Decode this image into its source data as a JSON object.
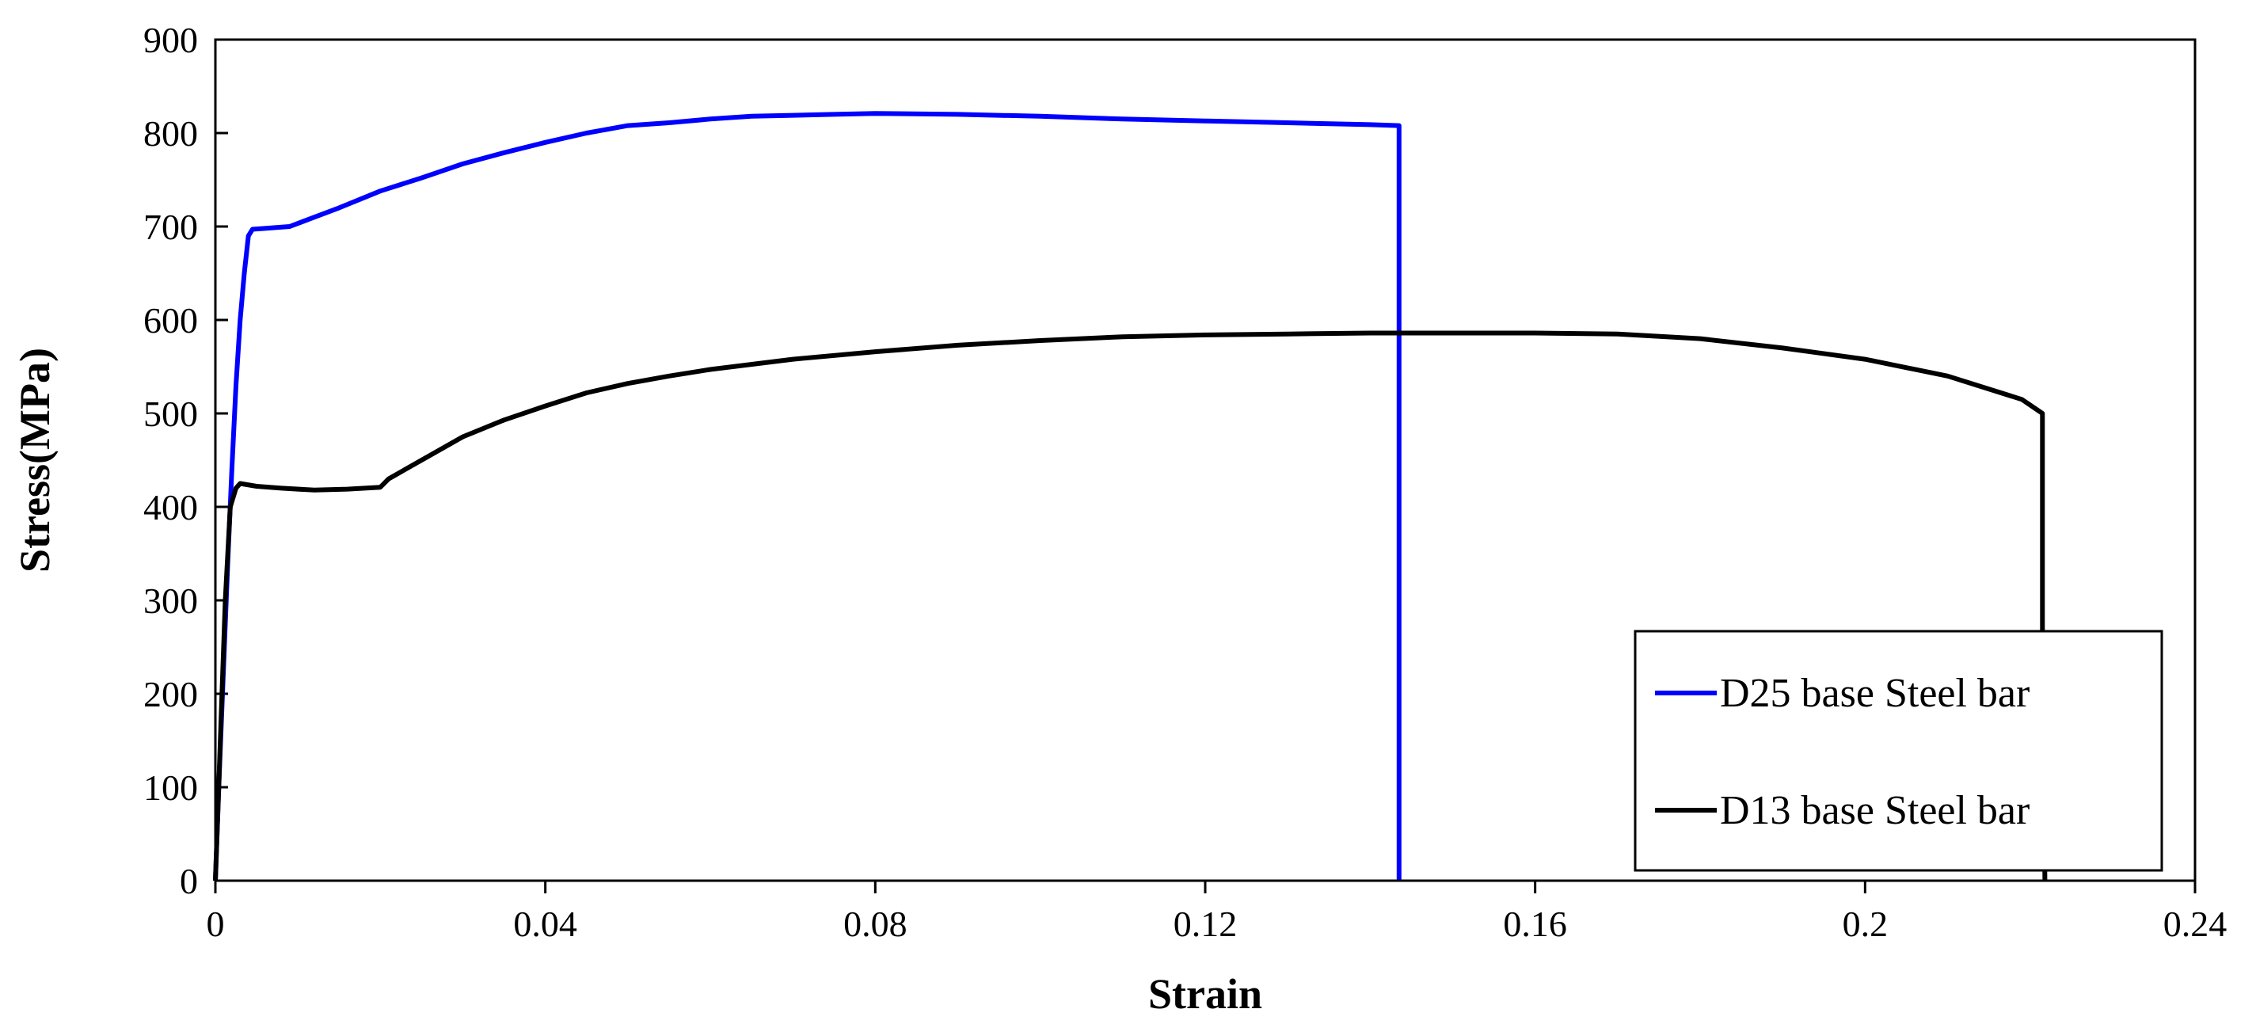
{
  "chart_data": {
    "type": "line",
    "title": "",
    "xlabel": "Strain",
    "ylabel": "Stress(MPa)",
    "xlim": [
      0,
      0.24
    ],
    "ylim": [
      0,
      900
    ],
    "xticks": [
      "0",
      "0.04",
      "0.08",
      "0.12",
      "0.16",
      "0.2",
      "0.24"
    ],
    "yticks": [
      "0",
      "100",
      "200",
      "300",
      "400",
      "500",
      "600",
      "700",
      "800",
      "900"
    ],
    "grid": false,
    "legend_position": "bottom-right",
    "series": [
      {
        "name": "D25 base Steel bar",
        "color": "#0000ff",
        "points": [
          [
            0,
            0
          ],
          [
            0.0005,
            120
          ],
          [
            0.001,
            230
          ],
          [
            0.0015,
            340
          ],
          [
            0.002,
            440
          ],
          [
            0.0025,
            530
          ],
          [
            0.003,
            600
          ],
          [
            0.0035,
            650
          ],
          [
            0.004,
            690
          ],
          [
            0.0045,
            697
          ],
          [
            0.006,
            698
          ],
          [
            0.009,
            700
          ],
          [
            0.012,
            710
          ],
          [
            0.015,
            720
          ],
          [
            0.02,
            738
          ],
          [
            0.025,
            752
          ],
          [
            0.03,
            767
          ],
          [
            0.035,
            779
          ],
          [
            0.04,
            790
          ],
          [
            0.045,
            800
          ],
          [
            0.05,
            808
          ],
          [
            0.055,
            811
          ],
          [
            0.06,
            815
          ],
          [
            0.065,
            818
          ],
          [
            0.07,
            819
          ],
          [
            0.075,
            820
          ],
          [
            0.08,
            821
          ],
          [
            0.09,
            820
          ],
          [
            0.1,
            818
          ],
          [
            0.11,
            815
          ],
          [
            0.12,
            813
          ],
          [
            0.13,
            811
          ],
          [
            0.14,
            809
          ],
          [
            0.1435,
            808
          ],
          [
            0.1435,
            0
          ]
        ]
      },
      {
        "name": "D13 base Steel bar",
        "color": "#000000",
        "points": [
          [
            0,
            0
          ],
          [
            0.0004,
            100
          ],
          [
            0.0008,
            200
          ],
          [
            0.0012,
            300
          ],
          [
            0.0018,
            400
          ],
          [
            0.0025,
            420
          ],
          [
            0.003,
            425
          ],
          [
            0.005,
            422
          ],
          [
            0.008,
            420
          ],
          [
            0.012,
            418
          ],
          [
            0.016,
            419
          ],
          [
            0.02,
            421
          ],
          [
            0.021,
            430
          ],
          [
            0.025,
            450
          ],
          [
            0.03,
            475
          ],
          [
            0.035,
            493
          ],
          [
            0.04,
            508
          ],
          [
            0.045,
            522
          ],
          [
            0.05,
            532
          ],
          [
            0.055,
            540
          ],
          [
            0.06,
            547
          ],
          [
            0.07,
            558
          ],
          [
            0.08,
            566
          ],
          [
            0.09,
            573
          ],
          [
            0.1,
            578
          ],
          [
            0.11,
            582
          ],
          [
            0.12,
            584
          ],
          [
            0.13,
            585
          ],
          [
            0.14,
            586
          ],
          [
            0.15,
            586
          ],
          [
            0.16,
            586
          ],
          [
            0.17,
            585
          ],
          [
            0.18,
            580
          ],
          [
            0.19,
            570
          ],
          [
            0.2,
            558
          ],
          [
            0.21,
            540
          ],
          [
            0.219,
            515
          ],
          [
            0.2215,
            500
          ],
          [
            0.2215,
            270
          ],
          [
            0.2218,
            0
          ]
        ]
      }
    ]
  }
}
